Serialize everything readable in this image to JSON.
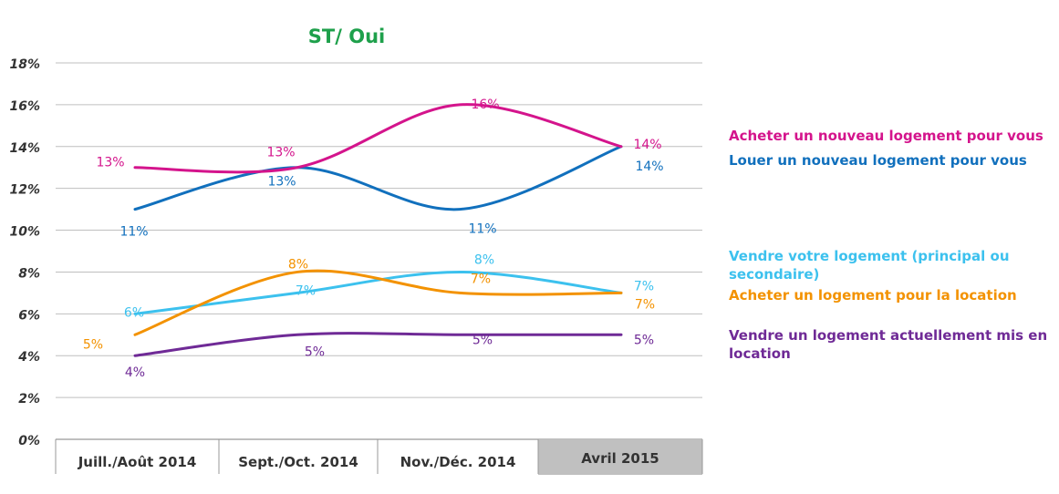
{
  "chart_data": {
    "type": "line",
    "title": "ST/ Oui",
    "categories": [
      "Juill./Août 2014",
      "Sept./Oct. 2014",
      "Nov./Déc. 2014",
      "Avril 2015"
    ],
    "highlighted_category": "Avril 2015",
    "ylim": [
      0,
      18
    ],
    "ytick_labels": [
      "0%",
      "2%",
      "4%",
      "6%",
      "8%",
      "10%",
      "12%",
      "14%",
      "16%",
      "18%"
    ],
    "grid": true,
    "legend_position": "right",
    "series": [
      {
        "name": "Acheter un nouveau logement pour vous",
        "color": "#d4148c",
        "values": [
          13,
          13,
          16,
          14
        ],
        "labels": [
          "13%",
          "13%",
          "16%",
          "14%"
        ]
      },
      {
        "name": "Louer un nouveau logement pour vous",
        "color": "#1170bd",
        "values": [
          11,
          13,
          11,
          14
        ],
        "labels": [
          "11%",
          "13%",
          "11%",
          "14%"
        ]
      },
      {
        "name": "Vendre votre logement (principal ou secondaire)",
        "color": "#3cc1ee",
        "values": [
          6,
          7,
          8,
          7
        ],
        "labels": [
          "6%",
          "7%",
          "8%",
          "7%"
        ]
      },
      {
        "name": "Acheter un logement pour la location",
        "color": "#f39200",
        "values": [
          5,
          8,
          7,
          7
        ],
        "labels": [
          "5%",
          "8%",
          "7%",
          "7%"
        ]
      },
      {
        "name": "Vendre un logement actuellement mis en location",
        "color": "#6f2a96",
        "values": [
          4,
          5,
          5,
          5
        ],
        "labels": [
          "4%",
          "5%",
          "5%",
          "5%"
        ]
      }
    ]
  }
}
